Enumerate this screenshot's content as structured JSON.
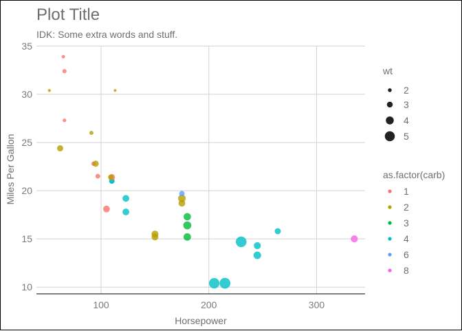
{
  "chart_data": {
    "type": "scatter",
    "title": "Plot Title",
    "subtitle": "IDK: Some extra words and stuff.",
    "xlabel": "Horsepower",
    "ylabel": "Miles Per Gallon",
    "xlim": [
      40,
      345
    ],
    "ylim": [
      9.3,
      35
    ],
    "x_ticks": [
      100,
      200,
      300
    ],
    "y_ticks": [
      10,
      15,
      20,
      25,
      30,
      35
    ],
    "grid": true,
    "legend_position": "right",
    "size_legend": {
      "title": "wt",
      "entries": [
        2,
        3,
        4,
        5
      ],
      "labels": [
        "2",
        "3",
        "4",
        "5"
      ]
    },
    "color_legend": {
      "title": "as.factor(carb)",
      "entries": [
        {
          "label": "1",
          "color": "#f8766d"
        },
        {
          "label": "2",
          "color": "#b79f00"
        },
        {
          "label": "3",
          "color": "#00ba38"
        },
        {
          "label": "4",
          "color": "#00bfc4"
        },
        {
          "label": "6",
          "color": "#619cff"
        },
        {
          "label": "8",
          "color": "#f564e3"
        }
      ]
    },
    "points": [
      {
        "x": 110,
        "y": 21.0,
        "wt": 2.62,
        "carb": "4"
      },
      {
        "x": 110,
        "y": 21.0,
        "wt": 2.875,
        "carb": "4"
      },
      {
        "x": 93,
        "y": 22.8,
        "wt": 2.32,
        "carb": "1"
      },
      {
        "x": 110,
        "y": 21.4,
        "wt": 3.215,
        "carb": "1"
      },
      {
        "x": 175,
        "y": 18.7,
        "wt": 3.44,
        "carb": "2"
      },
      {
        "x": 105,
        "y": 18.1,
        "wt": 3.46,
        "carb": "1"
      },
      {
        "x": 245,
        "y": 14.3,
        "wt": 3.57,
        "carb": "4"
      },
      {
        "x": 62,
        "y": 24.4,
        "wt": 3.19,
        "carb": "2"
      },
      {
        "x": 95,
        "y": 22.8,
        "wt": 3.15,
        "carb": "2"
      },
      {
        "x": 123,
        "y": 19.2,
        "wt": 3.44,
        "carb": "4"
      },
      {
        "x": 123,
        "y": 17.8,
        "wt": 3.44,
        "carb": "4"
      },
      {
        "x": 180,
        "y": 16.4,
        "wt": 4.07,
        "carb": "3"
      },
      {
        "x": 180,
        "y": 17.3,
        "wt": 3.73,
        "carb": "3"
      },
      {
        "x": 180,
        "y": 15.2,
        "wt": 3.78,
        "carb": "3"
      },
      {
        "x": 205,
        "y": 10.4,
        "wt": 5.25,
        "carb": "4"
      },
      {
        "x": 215,
        "y": 10.4,
        "wt": 5.424,
        "carb": "4"
      },
      {
        "x": 230,
        "y": 14.7,
        "wt": 5.345,
        "carb": "4"
      },
      {
        "x": 66,
        "y": 32.4,
        "wt": 2.2,
        "carb": "1"
      },
      {
        "x": 52,
        "y": 30.4,
        "wt": 1.615,
        "carb": "2"
      },
      {
        "x": 65,
        "y": 33.9,
        "wt": 1.835,
        "carb": "1"
      },
      {
        "x": 97,
        "y": 21.5,
        "wt": 2.465,
        "carb": "1"
      },
      {
        "x": 150,
        "y": 15.5,
        "wt": 3.52,
        "carb": "2"
      },
      {
        "x": 150,
        "y": 15.2,
        "wt": 3.435,
        "carb": "2"
      },
      {
        "x": 245,
        "y": 13.3,
        "wt": 3.84,
        "carb": "4"
      },
      {
        "x": 175,
        "y": 19.2,
        "wt": 3.845,
        "carb": "2"
      },
      {
        "x": 66,
        "y": 27.3,
        "wt": 1.935,
        "carb": "1"
      },
      {
        "x": 91,
        "y": 26.0,
        "wt": 2.14,
        "carb": "2"
      },
      {
        "x": 113,
        "y": 30.4,
        "wt": 1.513,
        "carb": "2"
      },
      {
        "x": 264,
        "y": 15.8,
        "wt": 3.17,
        "carb": "4"
      },
      {
        "x": 175,
        "y": 19.7,
        "wt": 2.77,
        "carb": "6"
      },
      {
        "x": 335,
        "y": 15.0,
        "wt": 3.57,
        "carb": "8"
      },
      {
        "x": 109,
        "y": 21.4,
        "wt": 2.78,
        "carb": "2"
      }
    ]
  }
}
